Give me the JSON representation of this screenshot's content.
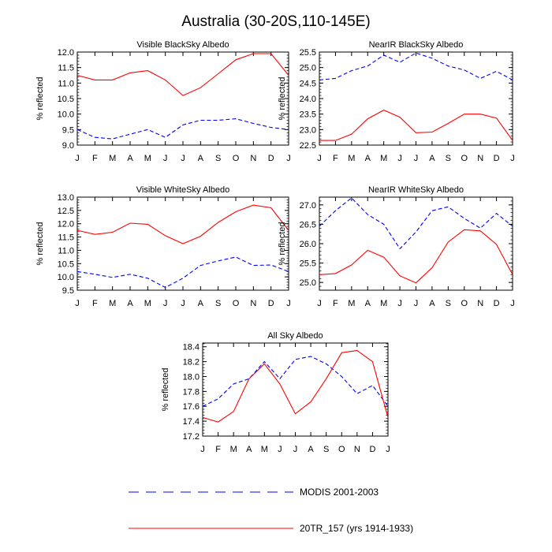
{
  "figure": {
    "title": "Australia (30-20S,110-145E)"
  },
  "chart_data": [
    {
      "type": "line",
      "title": "Visible BlackSky Albedo",
      "xlabel": "",
      "ylabel": "% reflected",
      "categories": [
        "J",
        "F",
        "M",
        "A",
        "M",
        "J",
        "J",
        "A",
        "S",
        "O",
        "N",
        "D",
        "J"
      ],
      "ylim": [
        9.0,
        12.0
      ],
      "yticks": [
        "9.0",
        "9.5",
        "10.0",
        "10.5",
        "11.0",
        "11.5",
        "12.0"
      ],
      "series": [
        {
          "name": "MODIS 2001-2003",
          "style": "dashed",
          "color": "#0000ff",
          "values": [
            9.5,
            9.25,
            9.2,
            9.35,
            9.5,
            9.25,
            9.65,
            9.8,
            9.8,
            9.85,
            9.7,
            9.57,
            9.5
          ]
        },
        {
          "name": "20TR_157 (yrs 1914-1933)",
          "style": "solid",
          "color": "#ff0000",
          "values": [
            11.25,
            11.1,
            11.1,
            11.33,
            11.4,
            11.1,
            10.6,
            10.85,
            11.3,
            11.75,
            11.95,
            11.95,
            11.25
          ]
        }
      ]
    },
    {
      "type": "line",
      "title": "NearIR BlackSky Albedo",
      "xlabel": "",
      "ylabel": "% reflected",
      "categories": [
        "J",
        "F",
        "M",
        "A",
        "M",
        "J",
        "J",
        "A",
        "S",
        "O",
        "N",
        "D",
        "J"
      ],
      "ylim": [
        22.5,
        25.5
      ],
      "yticks": [
        "22.5",
        "23.0",
        "23.5",
        "24.0",
        "24.5",
        "25.0",
        "25.5"
      ],
      "series": [
        {
          "name": "MODIS 2001-2003",
          "style": "dashed",
          "color": "#0000ff",
          "values": [
            24.6,
            24.65,
            24.9,
            25.05,
            25.4,
            25.17,
            25.47,
            25.3,
            25.05,
            24.92,
            24.65,
            24.88,
            24.6
          ]
        },
        {
          "name": "20TR_157 (yrs 1914-1933)",
          "style": "solid",
          "color": "#ff0000",
          "values": [
            22.65,
            22.65,
            22.85,
            23.35,
            23.63,
            23.4,
            22.9,
            22.92,
            23.2,
            23.5,
            23.5,
            23.37,
            22.65
          ]
        }
      ]
    },
    {
      "type": "line",
      "title": "Visible WhiteSky Albedo",
      "xlabel": "",
      "ylabel": "% reflected",
      "categories": [
        "J",
        "F",
        "M",
        "A",
        "M",
        "J",
        "J",
        "A",
        "S",
        "O",
        "N",
        "D",
        "J"
      ],
      "ylim": [
        9.5,
        13.0
      ],
      "yticks": [
        "9.5",
        "10.0",
        "10.5",
        "11.0",
        "11.5",
        "12.0",
        "12.5",
        "13.0"
      ],
      "series": [
        {
          "name": "MODIS 2001-2003",
          "style": "dashed",
          "color": "#0000ff",
          "values": [
            10.2,
            10.1,
            9.98,
            10.1,
            9.95,
            9.6,
            9.95,
            10.43,
            10.6,
            10.75,
            10.43,
            10.45,
            10.2
          ]
        },
        {
          "name": "20TR_157 (yrs 1914-1933)",
          "style": "solid",
          "color": "#ff0000",
          "values": [
            11.75,
            11.6,
            11.68,
            12.02,
            11.98,
            11.55,
            11.25,
            11.53,
            12.05,
            12.45,
            12.7,
            12.6,
            11.75
          ]
        }
      ]
    },
    {
      "type": "line",
      "title": "NearIR WhiteSky Albedo",
      "xlabel": "",
      "ylabel": "% reflected",
      "categories": [
        "J",
        "F",
        "M",
        "A",
        "M",
        "J",
        "J",
        "A",
        "S",
        "O",
        "N",
        "D",
        "J"
      ],
      "ylim": [
        24.8,
        27.2
      ],
      "yticks": [
        "25.0",
        "25.5",
        "26.0",
        "26.5",
        "27.0"
      ],
      "ytick_values": [
        25.0,
        25.5,
        26.0,
        26.5,
        27.0
      ],
      "series": [
        {
          "name": "MODIS 2001-2003",
          "style": "dashed",
          "color": "#0000ff",
          "values": [
            26.45,
            26.85,
            27.18,
            26.75,
            26.5,
            25.87,
            26.3,
            26.85,
            26.95,
            26.65,
            26.4,
            26.78,
            26.45
          ]
        },
        {
          "name": "20TR_157 (yrs 1914-1933)",
          "style": "solid",
          "color": "#ff0000",
          "values": [
            25.2,
            25.23,
            25.45,
            25.83,
            25.65,
            25.17,
            24.99,
            25.38,
            26.04,
            26.36,
            26.33,
            25.98,
            25.2
          ]
        }
      ]
    },
    {
      "type": "line",
      "title": "All Sky Albedo",
      "xlabel": "",
      "ylabel": "% reflected",
      "categories": [
        "J",
        "F",
        "M",
        "A",
        "M",
        "J",
        "J",
        "A",
        "S",
        "O",
        "N",
        "D",
        "J"
      ],
      "ylim": [
        17.2,
        18.45
      ],
      "yticks": [
        "17.2",
        "17.4",
        "17.6",
        "17.8",
        "18.0",
        "18.2",
        "18.4"
      ],
      "ytick_values": [
        17.2,
        17.4,
        17.6,
        17.8,
        18.0,
        18.2,
        18.4
      ],
      "series": [
        {
          "name": "MODIS 2001-2003",
          "style": "dashed",
          "color": "#0000ff",
          "values": [
            17.6,
            17.7,
            17.9,
            17.97,
            18.2,
            17.97,
            18.23,
            18.27,
            18.17,
            18.0,
            17.77,
            17.88,
            17.6
          ]
        },
        {
          "name": "20TR_157 (yrs 1914-1933)",
          "style": "solid",
          "color": "#ff0000",
          "values": [
            17.45,
            17.39,
            17.53,
            17.97,
            18.17,
            17.9,
            17.5,
            17.66,
            17.97,
            18.32,
            18.35,
            18.2,
            17.45
          ]
        }
      ]
    }
  ],
  "legend": {
    "position": "bottom",
    "entries": [
      {
        "label": "MODIS 2001-2003",
        "style": "dashed",
        "color": "#0000ff"
      },
      {
        "label": "20TR_157 (yrs 1914-1933)",
        "style": "solid",
        "color": "#ff0000"
      }
    ]
  }
}
